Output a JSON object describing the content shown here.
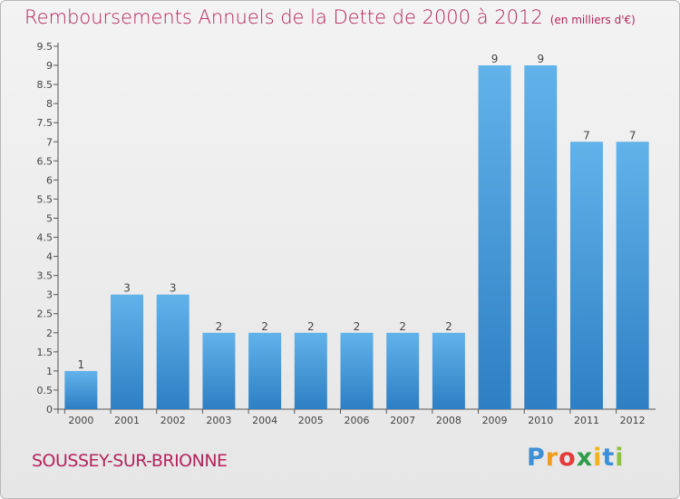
{
  "title": "Remboursements Annuels de la Dette de 2000 à 2012",
  "unit": "(en milliers d'€)",
  "commune": "SOUSSEY-SUR-BRIONNE",
  "brand": {
    "letters": [
      "P",
      "r",
      "o",
      "x",
      "i",
      "t",
      "i"
    ],
    "colors": [
      "#3d8fd6",
      "#f39c1a",
      "#e23b3b",
      "#2d9d4a",
      "#f2b21b",
      "#3d8fd6",
      "#8cc43f"
    ]
  },
  "colors": {
    "bar_top": "#62b2ea",
    "bar_bottom": "#2e7fc3",
    "title": "#b4245c",
    "axis": "#555555"
  },
  "chart_data": {
    "type": "bar",
    "categories": [
      "2000",
      "2001",
      "2002",
      "2003",
      "2004",
      "2005",
      "2006",
      "2007",
      "2008",
      "2009",
      "2010",
      "2011",
      "2012"
    ],
    "values": [
      1,
      3,
      3,
      2,
      2,
      2,
      2,
      2,
      2,
      9,
      9,
      7,
      7
    ],
    "data_labels": [
      "1",
      "3",
      "3",
      "2",
      "2",
      "2",
      "2",
      "2",
      "2",
      "9",
      "9",
      "7",
      "7"
    ],
    "ylim": [
      0,
      9.5
    ],
    "yticks": [
      "0",
      "0.5",
      "1",
      "1.5",
      "2",
      "2.5",
      "3",
      "3.5",
      "4",
      "4.5",
      "5",
      "5.5",
      "6",
      "6.5",
      "7",
      "7.5",
      "8",
      "8.5",
      "9",
      "9.5"
    ],
    "grid": false,
    "legend": "none"
  }
}
